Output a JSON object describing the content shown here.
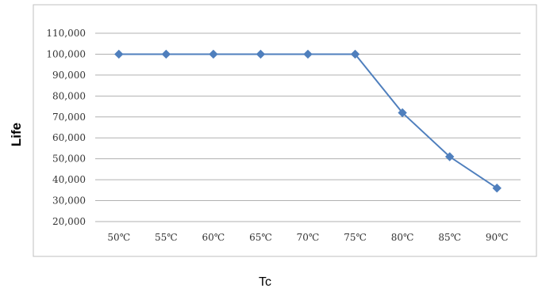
{
  "chart_data": {
    "type": "line",
    "categories": [
      "50℃",
      "55℃",
      "60℃",
      "65℃",
      "70℃",
      "75℃",
      "80℃",
      "85℃",
      "90℃"
    ],
    "series": [
      {
        "values": [
          100000,
          100000,
          100000,
          100000,
          100000,
          100000,
          72000,
          51000,
          36000
        ]
      }
    ],
    "yticks": [
      "20,000",
      "30,000",
      "40,000",
      "50,000",
      "60,000",
      "70,000",
      "80,000",
      "90,000",
      "100,000",
      "110,000"
    ],
    "xlabel": "Tc",
    "ylabel": "Life",
    "ylim": [
      20000,
      110000
    ],
    "grid": true,
    "colors": {
      "series": "#4f7fbd",
      "grid": "#b0b0b0",
      "frame": "#bfbfbf"
    }
  }
}
